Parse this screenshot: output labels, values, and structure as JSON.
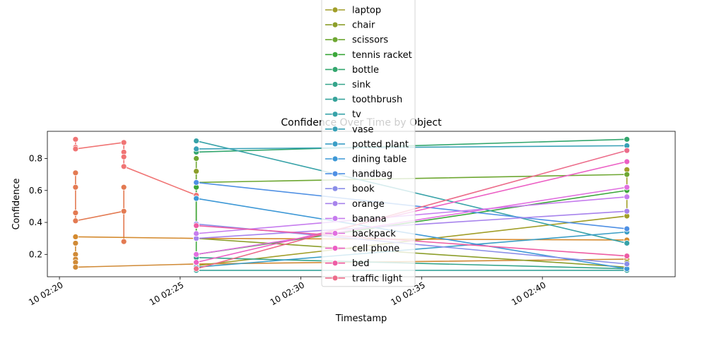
{
  "chart_data": {
    "type": "line",
    "title": "Confidence Over Time by Object",
    "xlabel": "Timestamp",
    "ylabel": "Confidence",
    "x_range": [
      "02:19:30",
      "02:45:30"
    ],
    "ylim": [
      0.06,
      0.97
    ],
    "x_ticks": [
      {
        "t": "02:20",
        "label": "10 02:20"
      },
      {
        "t": "02:25",
        "label": "10 02:25"
      },
      {
        "t": "02:30",
        "label": "10 02:30"
      },
      {
        "t": "02:35",
        "label": "10 02:35"
      },
      {
        "t": "02:40",
        "label": "10 02:40"
      }
    ],
    "y_ticks": [
      0.2,
      0.4,
      0.6,
      0.8
    ],
    "grid": false,
    "legend_position": "top-center",
    "series": [
      {
        "name": "laptop",
        "color": "#a19e28",
        "points": [
          [
            "02:25:40",
            0.13
          ],
          [
            "02:43:30",
            0.44
          ],
          [
            "02:43:30",
            0.73
          ]
        ]
      },
      {
        "name": "chair",
        "color": "#8c9e2a",
        "points": [
          [
            "02:25:40",
            0.72
          ],
          [
            "02:25:40",
            0.3
          ],
          [
            "02:43:30",
            0.12
          ],
          [
            "02:43:30",
            0.15
          ]
        ]
      },
      {
        "name": "scissors",
        "color": "#6ea732",
        "points": [
          [
            "02:25:40",
            0.8
          ],
          [
            "02:25:40",
            0.65
          ],
          [
            "02:43:30",
            0.7
          ]
        ]
      },
      {
        "name": "tennis racket",
        "color": "#3ba73a",
        "points": [
          [
            "02:25:40",
            0.62
          ],
          [
            "02:25:40",
            0.2
          ],
          [
            "02:43:30",
            0.6
          ]
        ]
      },
      {
        "name": "bottle",
        "color": "#33a66e",
        "points": [
          [
            "02:25:40",
            0.84
          ],
          [
            "02:43:30",
            0.92
          ]
        ]
      },
      {
        "name": "sink",
        "color": "#35a48a",
        "points": [
          [
            "02:25:40",
            0.18
          ],
          [
            "02:43:30",
            0.11
          ]
        ]
      },
      {
        "name": "toothbrush",
        "color": "#36a39a",
        "points": [
          [
            "02:25:40",
            0.1
          ],
          [
            "02:43:30",
            0.1
          ]
        ]
      },
      {
        "name": "tv",
        "color": "#37a2a8",
        "points": [
          [
            "02:25:40",
            0.91
          ],
          [
            "02:43:30",
            0.27
          ]
        ]
      },
      {
        "name": "vase",
        "color": "#38a1b6",
        "points": [
          [
            "02:25:40",
            0.86
          ],
          [
            "02:43:30",
            0.88
          ]
        ]
      },
      {
        "name": "potted plant",
        "color": "#3a9ec6",
        "points": [
          [
            "02:25:40",
            0.12
          ],
          [
            "02:43:30",
            0.34
          ]
        ]
      },
      {
        "name": "dining table",
        "color": "#3d98d6",
        "points": [
          [
            "02:25:40",
            0.55
          ],
          [
            "02:43:30",
            0.11
          ]
        ]
      },
      {
        "name": "handbag",
        "color": "#4f90e4",
        "points": [
          [
            "02:25:40",
            0.65
          ],
          [
            "02:43:30",
            0.36
          ]
        ]
      },
      {
        "name": "book",
        "color": "#8a8ee8",
        "points": [
          [
            "02:25:40",
            0.39
          ],
          [
            "02:43:30",
            0.14
          ]
        ]
      },
      {
        "name": "orange",
        "color": "#a783ec",
        "points": [
          [
            "02:25:40",
            0.3
          ],
          [
            "02:43:30",
            0.47
          ]
        ]
      },
      {
        "name": "banana",
        "color": "#c67cee",
        "points": [
          [
            "02:25:40",
            0.33
          ],
          [
            "02:43:30",
            0.56
          ]
        ]
      },
      {
        "name": "backpack",
        "color": "#e16fe0",
        "points": [
          [
            "02:25:40",
            0.2
          ],
          [
            "02:43:30",
            0.62
          ]
        ]
      },
      {
        "name": "cell phone",
        "color": "#ec5fc4",
        "points": [
          [
            "02:25:40",
            0.15
          ],
          [
            "02:43:30",
            0.78
          ]
        ]
      },
      {
        "name": "bed",
        "color": "#ed5da4",
        "points": [
          [
            "02:25:40",
            0.38
          ],
          [
            "02:43:30",
            0.19
          ]
        ]
      },
      {
        "name": "traffic light",
        "color": "#ec6c8a",
        "points": [
          [
            "02:25:40",
            0.11
          ],
          [
            "02:43:30",
            0.85
          ]
        ]
      }
    ],
    "unlisted_series": [
      {
        "color": "#f07474",
        "points": [
          [
            "02:20:40",
            0.92
          ],
          [
            "02:20:40",
            0.87
          ],
          [
            "02:20:40",
            0.86
          ],
          [
            "02:22:40",
            0.9
          ],
          [
            "02:22:40",
            0.84
          ],
          [
            "02:22:40",
            0.81
          ],
          [
            "02:22:40",
            0.75
          ],
          [
            "02:25:40",
            0.57
          ]
        ]
      },
      {
        "color": "#e37a52",
        "points": [
          [
            "02:20:40",
            0.71
          ],
          [
            "02:20:40",
            0.62
          ],
          [
            "02:20:40",
            0.46
          ],
          [
            "02:20:40",
            0.41
          ],
          [
            "02:22:40",
            0.47
          ],
          [
            "02:22:40",
            0.62
          ],
          [
            "02:22:40",
            0.28
          ]
        ]
      },
      {
        "color": "#d48a2e",
        "points": [
          [
            "02:20:40",
            0.31
          ],
          [
            "02:25:40",
            0.3
          ],
          [
            "02:43:30",
            0.29
          ]
        ]
      },
      {
        "color": "#d08a36",
        "points": [
          [
            "02:20:40",
            0.27
          ],
          [
            "02:20:40",
            0.2
          ],
          [
            "02:20:40",
            0.17
          ],
          [
            "02:20:40",
            0.15
          ],
          [
            "02:20:40",
            0.12
          ],
          [
            "02:25:40",
            0.14
          ],
          [
            "02:43:30",
            0.17
          ]
        ]
      }
    ]
  }
}
